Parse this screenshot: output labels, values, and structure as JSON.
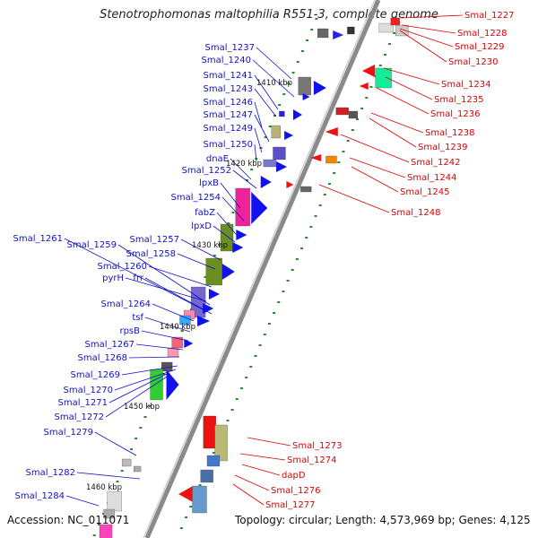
{
  "header": {
    "title": "Stenotrophomonas maltophilia R551-3, complete genome"
  },
  "footer": {
    "accession": "Accession: NC_011071",
    "summary": "Topology: circular; Length: 4,573,969 bp; Genes: 4,125"
  },
  "colors": {
    "backbone": "#8a8a8a",
    "forward_label": "#1010c8",
    "reverse_label": "#dd0000",
    "tick": "#2a8a2a"
  },
  "scale_labels": [
    "1410 kbp",
    "1420 kbp",
    "1430 kbp",
    "1440 kbp",
    "1450 kbp",
    "1460 kbp"
  ],
  "left_labels": [
    "Smal_1237",
    "Smal_1240",
    "Smal_1241",
    "Smal_1243",
    "Smal_1246",
    "Smal_1247",
    "Smal_1249",
    "Smal_1250",
    "dnaE",
    "Smal_1252",
    "lpxB",
    "Smal_1254",
    "fabZ",
    "lpxD",
    "Smal_1261",
    "Smal_1259",
    "Smal_1257",
    "Smal_1258",
    "Smal_1260",
    "pyrH",
    "frr",
    "Smal_1264",
    "tsf",
    "rpsB",
    "Smal_1267",
    "Smal_1268",
    "Smal_1269",
    "Smal_1270",
    "Smal_1271",
    "Smal_1272",
    "Smal_1279",
    "Smal_1282",
    "Smal_1284"
  ],
  "right_labels": [
    "Smal_1227",
    "Smal_1228",
    "Smal_1229",
    "Smal_1230",
    "Smal_1234",
    "Smal_1235",
    "Smal_1236",
    "Smal_1238",
    "Smal_1239",
    "Smal_1242",
    "Smal_1244",
    "Smal_1245",
    "Smal_1248",
    "Smal_1273",
    "Smal_1274",
    "dapD",
    "Smal_1276",
    "Smal_1277"
  ]
}
